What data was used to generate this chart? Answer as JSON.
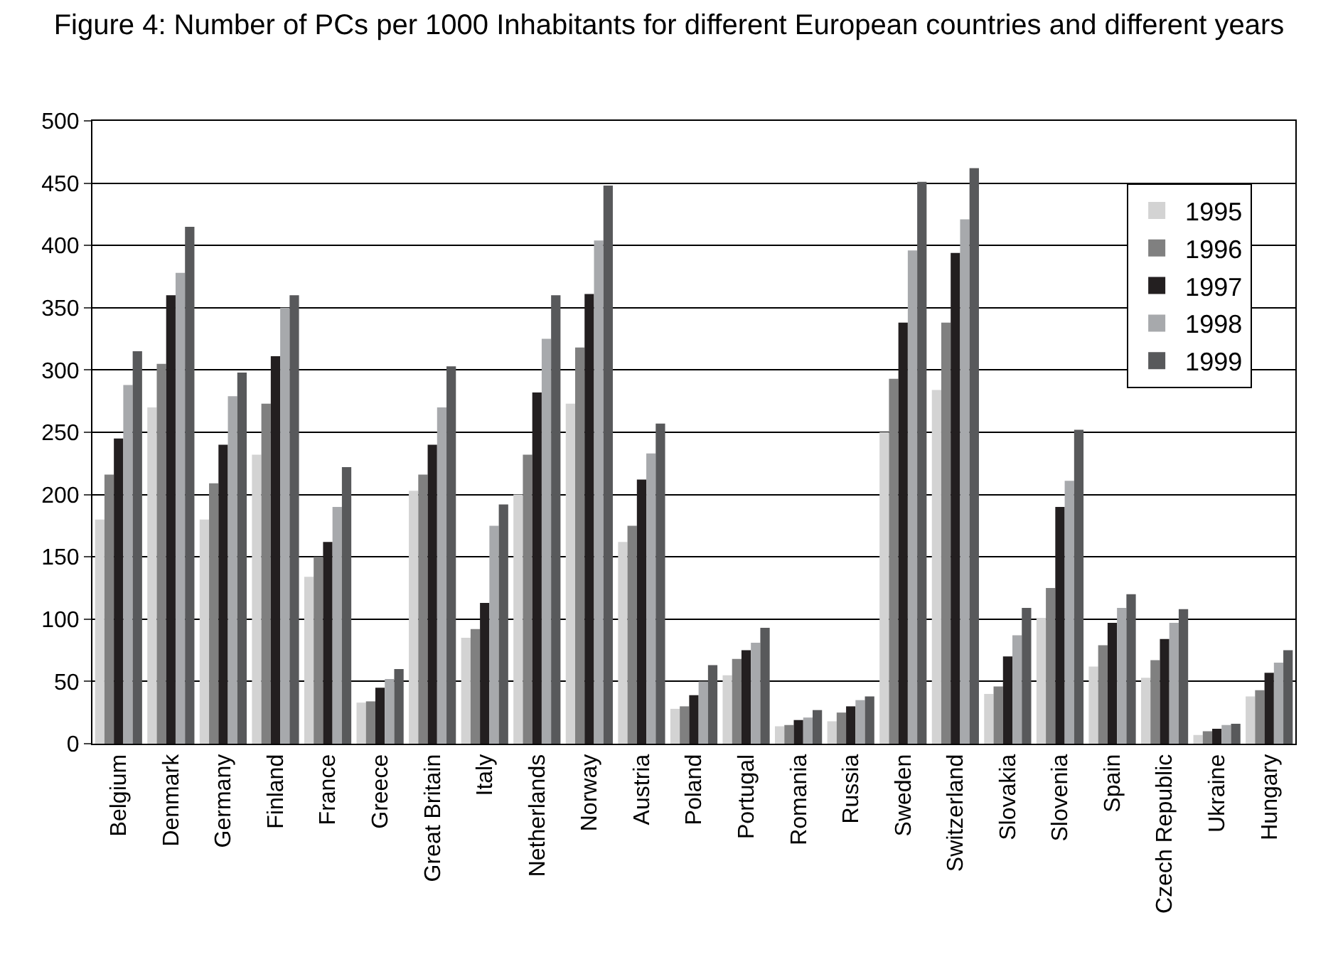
{
  "chart_data": {
    "type": "bar",
    "title": "Figure 4: Number of PCs per 1000 Inhabitants for different European countries and different years",
    "categories": [
      "Belgium",
      "Denmark",
      "Germany",
      "Finland",
      "France",
      "Greece",
      "Great Britain",
      "Italy",
      "Netherlands",
      "Norway",
      "Austria",
      "Poland",
      "Portugal",
      "Romania",
      "Russia",
      "Sweden",
      "Switzerland",
      "Slovakia",
      "Slovenia",
      "Spain",
      "Czech Republic",
      "Ukraine",
      "Hungary"
    ],
    "series": [
      {
        "name": "1995",
        "color": "#d3d3d3",
        "values": [
          180,
          270,
          180,
          232,
          134,
          33,
          203,
          85,
          200,
          273,
          162,
          28,
          55,
          14,
          18,
          250,
          284,
          40,
          101,
          62,
          53,
          7,
          38
        ]
      },
      {
        "name": "1996",
        "color": "#808080",
        "values": [
          216,
          305,
          209,
          273,
          150,
          34,
          216,
          92,
          232,
          318,
          175,
          30,
          68,
          15,
          25,
          293,
          338,
          46,
          125,
          79,
          67,
          10,
          43
        ]
      },
      {
        "name": "1997",
        "color": "#231f20",
        "values": [
          245,
          360,
          240,
          311,
          162,
          45,
          240,
          113,
          282,
          361,
          212,
          39,
          75,
          19,
          30,
          338,
          394,
          70,
          190,
          97,
          84,
          12,
          57
        ]
      },
      {
        "name": "1998",
        "color": "#a7a9ac",
        "values": [
          288,
          378,
          279,
          350,
          190,
          52,
          270,
          175,
          325,
          404,
          233,
          50,
          81,
          21,
          35,
          396,
          421,
          87,
          211,
          109,
          97,
          15,
          65
        ]
      },
      {
        "name": "1999",
        "color": "#58595b",
        "values": [
          315,
          415,
          298,
          360,
          222,
          60,
          303,
          192,
          360,
          448,
          257,
          63,
          93,
          27,
          38,
          451,
          462,
          109,
          252,
          120,
          108,
          16,
          75
        ]
      }
    ],
    "ylim": [
      0,
      500
    ],
    "yticks": [
      0,
      50,
      100,
      150,
      200,
      250,
      300,
      350,
      400,
      450,
      500
    ],
    "grid": "y",
    "legend": "top right"
  }
}
